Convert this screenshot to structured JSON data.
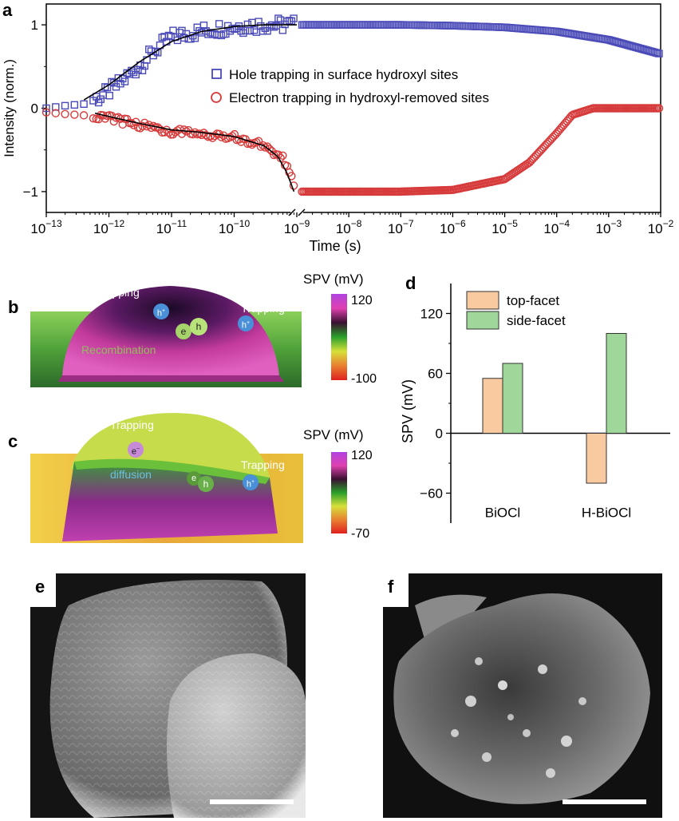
{
  "panels": {
    "a": {
      "label": "a",
      "chart_data": {
        "type": "scatter",
        "x_scale": "log",
        "axis_break_at": 1e-09,
        "xlim": [
          1e-13,
          0.01
        ],
        "ylim": [
          -1.25,
          1.25
        ],
        "xlabel": "Time (s)",
        "ylabel": "Intensity (norm.)",
        "x_ticks": [
          "10^-13",
          "10^-12",
          "10^-11",
          "10^-10",
          "10^-9",
          "10^-8",
          "10^-7",
          "10^-6",
          "10^-5",
          "10^-4",
          "10^-3",
          "10^-2"
        ],
        "y_ticks": [
          "1",
          "0",
          "−1"
        ],
        "legend": "center",
        "series": [
          {
            "name": "Hole trapping in surface hydroxyl sites",
            "color": "#4a4ab8",
            "marker": "square",
            "x_sample": [
              1e-13,
              2e-13,
              4e-13,
              8e-13,
              1.5e-12,
              3e-12,
              6e-12,
              1e-11,
              2e-11,
              5e-11,
              1e-10,
              3e-10,
              8e-10,
              1e-09,
              1e-08,
              1e-07,
              1e-06,
              1e-05,
              0.0001,
              0.001,
              0.01
            ],
            "y_sample": [
              0.0,
              0.03,
              0.05,
              0.15,
              0.3,
              0.5,
              0.72,
              0.85,
              0.9,
              0.95,
              0.98,
              1.0,
              1.0,
              1.0,
              1.0,
              1.0,
              0.99,
              0.97,
              0.92,
              0.82,
              0.65
            ]
          },
          {
            "name": "Electron trapping in hydroxyl-removed sites",
            "color": "#d63a3a",
            "marker": "circle",
            "x_sample": [
              1e-13,
              2e-13,
              5e-13,
              1e-12,
              3e-12,
              1e-11,
              3e-11,
              1e-10,
              3e-10,
              6e-10,
              8e-10,
              1e-09,
              1e-08,
              1e-07,
              1e-06,
              1e-05,
              3e-05,
              0.0001,
              0.0002,
              0.0005,
              0.001,
              0.01
            ],
            "y_sample": [
              -0.05,
              -0.07,
              -0.09,
              -0.12,
              -0.2,
              -0.28,
              -0.3,
              -0.35,
              -0.45,
              -0.6,
              -0.8,
              -1.0,
              -1.0,
              -1.0,
              -0.98,
              -0.85,
              -0.65,
              -0.3,
              -0.08,
              0.0,
              0.0,
              0.0
            ]
          },
          {
            "name": "",
            "type": "line",
            "color": "#000000",
            "x_sample": [
              4e-13,
              1e-12,
              3e-12,
              1e-11,
              3e-11,
              1e-10,
              3e-10,
              6e-10,
              8e-10,
              1e-09
            ],
            "y_sample": [
              0.1,
              0.28,
              0.55,
              0.8,
              0.92,
              0.98,
              1.0,
              1.0,
              1.0,
              1.0
            ]
          },
          {
            "name": "",
            "type": "line",
            "color": "#000000",
            "x_sample": [
              6e-13,
              1e-12,
              3e-12,
              1e-11,
              3e-11,
              1e-10,
              3e-10,
              5e-10,
              7e-10,
              9e-10
            ],
            "y_sample": [
              -0.06,
              -0.1,
              -0.18,
              -0.26,
              -0.29,
              -0.34,
              -0.45,
              -0.58,
              -0.78,
              -1.0
            ]
          }
        ]
      }
    },
    "b": {
      "label": "b",
      "title": "SPV (mV)",
      "colorbar_max": "120",
      "colorbar_min": "-100",
      "annotations": {
        "trapping_left": "Trapping",
        "trapping_right": "Trapping",
        "recombination": "Recombination",
        "hole": "h",
        "hole_sup": "+",
        "electron": "e",
        "h_left": "h",
        "h_left_sup": "+"
      },
      "colors": {
        "background": "#6db33f",
        "dome": "#c0389a",
        "dome_top": "#2a1036"
      }
    },
    "c": {
      "label": "c",
      "title": "SPV (mV)",
      "colorbar_max": "120",
      "colorbar_min": "-70",
      "annotations": {
        "trapping_left": "Trapping",
        "trapping_right": "Trapping",
        "diffusion": "diffusion",
        "electron_left": "e",
        "electron_left_sup": "−",
        "electron": "e",
        "hole": "h",
        "h_right": "h",
        "h_right_sup": "+"
      },
      "colors": {
        "background": "#e9c23a",
        "dome": "#b8d23a"
      }
    },
    "d": {
      "label": "d",
      "chart_data": {
        "type": "bar",
        "categories": [
          "BiOCl",
          "H-BiOCl"
        ],
        "series": [
          {
            "name": "top-facet",
            "color": "#f9c9a0",
            "values": [
              55,
              -50
            ]
          },
          {
            "name": "side-facet",
            "color": "#9fd79a",
            "values": [
              70,
              100
            ]
          }
        ],
        "ylabel": "SPV (mV)",
        "ylim": [
          -90,
          150
        ],
        "y_ticks": [
          120,
          60,
          0,
          -60
        ],
        "legend": "top-left"
      }
    },
    "e": {
      "label": "e"
    },
    "f": {
      "label": "f"
    }
  }
}
